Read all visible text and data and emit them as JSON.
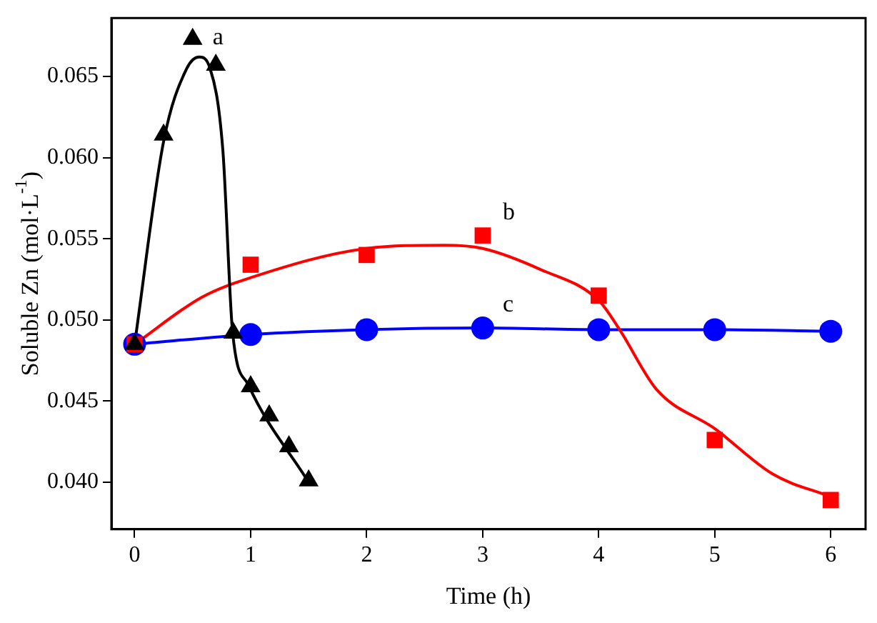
{
  "chart_data": {
    "type": "scatter",
    "xlabel": "Time (h)",
    "ylabel": "Soluble Zn (mol·L$^{-1}$)",
    "xlim": [
      -0.2,
      6.3
    ],
    "ylim": [
      0.0371,
      0.0686
    ],
    "xticks": [
      0,
      1,
      2,
      3,
      4,
      5,
      6
    ],
    "yticks": [
      {
        "value": 0.04,
        "label": "0.040"
      },
      {
        "value": 0.045,
        "label": "0.045"
      },
      {
        "value": 0.05,
        "label": "0.050"
      },
      {
        "value": 0.055,
        "label": "0.055"
      },
      {
        "value": 0.06,
        "label": "0.060"
      },
      {
        "value": 0.065,
        "label": "0.065"
      }
    ],
    "grid": false,
    "legend": false,
    "series": [
      {
        "type": "line",
        "color": "#000000",
        "marker": "none",
        "x": [
          0,
          0.25,
          0.45,
          0.556,
          0.65,
          0.76,
          0.845,
          0.98,
          1.5
        ],
        "values": [
          0.0485,
          0.061,
          0.0655,
          0.0662,
          0.0655,
          0.0605,
          0.0492,
          0.046,
          0.04
        ]
      },
      {
        "type": "line",
        "color": "#ff0000",
        "marker": "none",
        "x": [
          0,
          0.58,
          1,
          2,
          2.67,
          3,
          3.5,
          4,
          4.18,
          4.5,
          5,
          5.5,
          6
        ],
        "values": [
          0.0485,
          0.0514,
          0.0526,
          0.0544,
          0.0546,
          0.0544,
          0.0531,
          0.0512,
          0.0494,
          0.0457,
          0.0433,
          0.0405,
          0.0391
        ]
      },
      {
        "type": "line",
        "color": "#0000ff",
        "marker": "none",
        "x": [
          0,
          1,
          2,
          3,
          4,
          5,
          6
        ],
        "values": [
          0.0485,
          0.0491,
          0.0494,
          0.0495,
          0.0494,
          0.0494,
          0.0493
        ]
      },
      {
        "name": "a",
        "color": "#000000",
        "marker": "triangle",
        "x": [
          0,
          0.25,
          0.5,
          0.7,
          0.85,
          1,
          1.16,
          1.33,
          1.5
        ],
        "values": [
          0.0485,
          0.0614,
          0.0673,
          0.0657,
          0.0492,
          0.0459,
          0.0441,
          0.0422,
          0.0401
        ]
      },
      {
        "name": "b",
        "color": "#ff0000",
        "marker": "square",
        "x": [
          0,
          1,
          2,
          3,
          4,
          5,
          6
        ],
        "values": [
          0.0485,
          0.0534,
          0.054,
          0.0552,
          0.0515,
          0.0426,
          0.0389
        ]
      },
      {
        "name": "c",
        "color": "#0000ff",
        "marker": "circle",
        "x": [
          0,
          1,
          2,
          3,
          4,
          5,
          6
        ],
        "values": [
          0.0485,
          0.0491,
          0.0494,
          0.0495,
          0.0494,
          0.0494,
          0.0493
        ]
      }
    ]
  }
}
